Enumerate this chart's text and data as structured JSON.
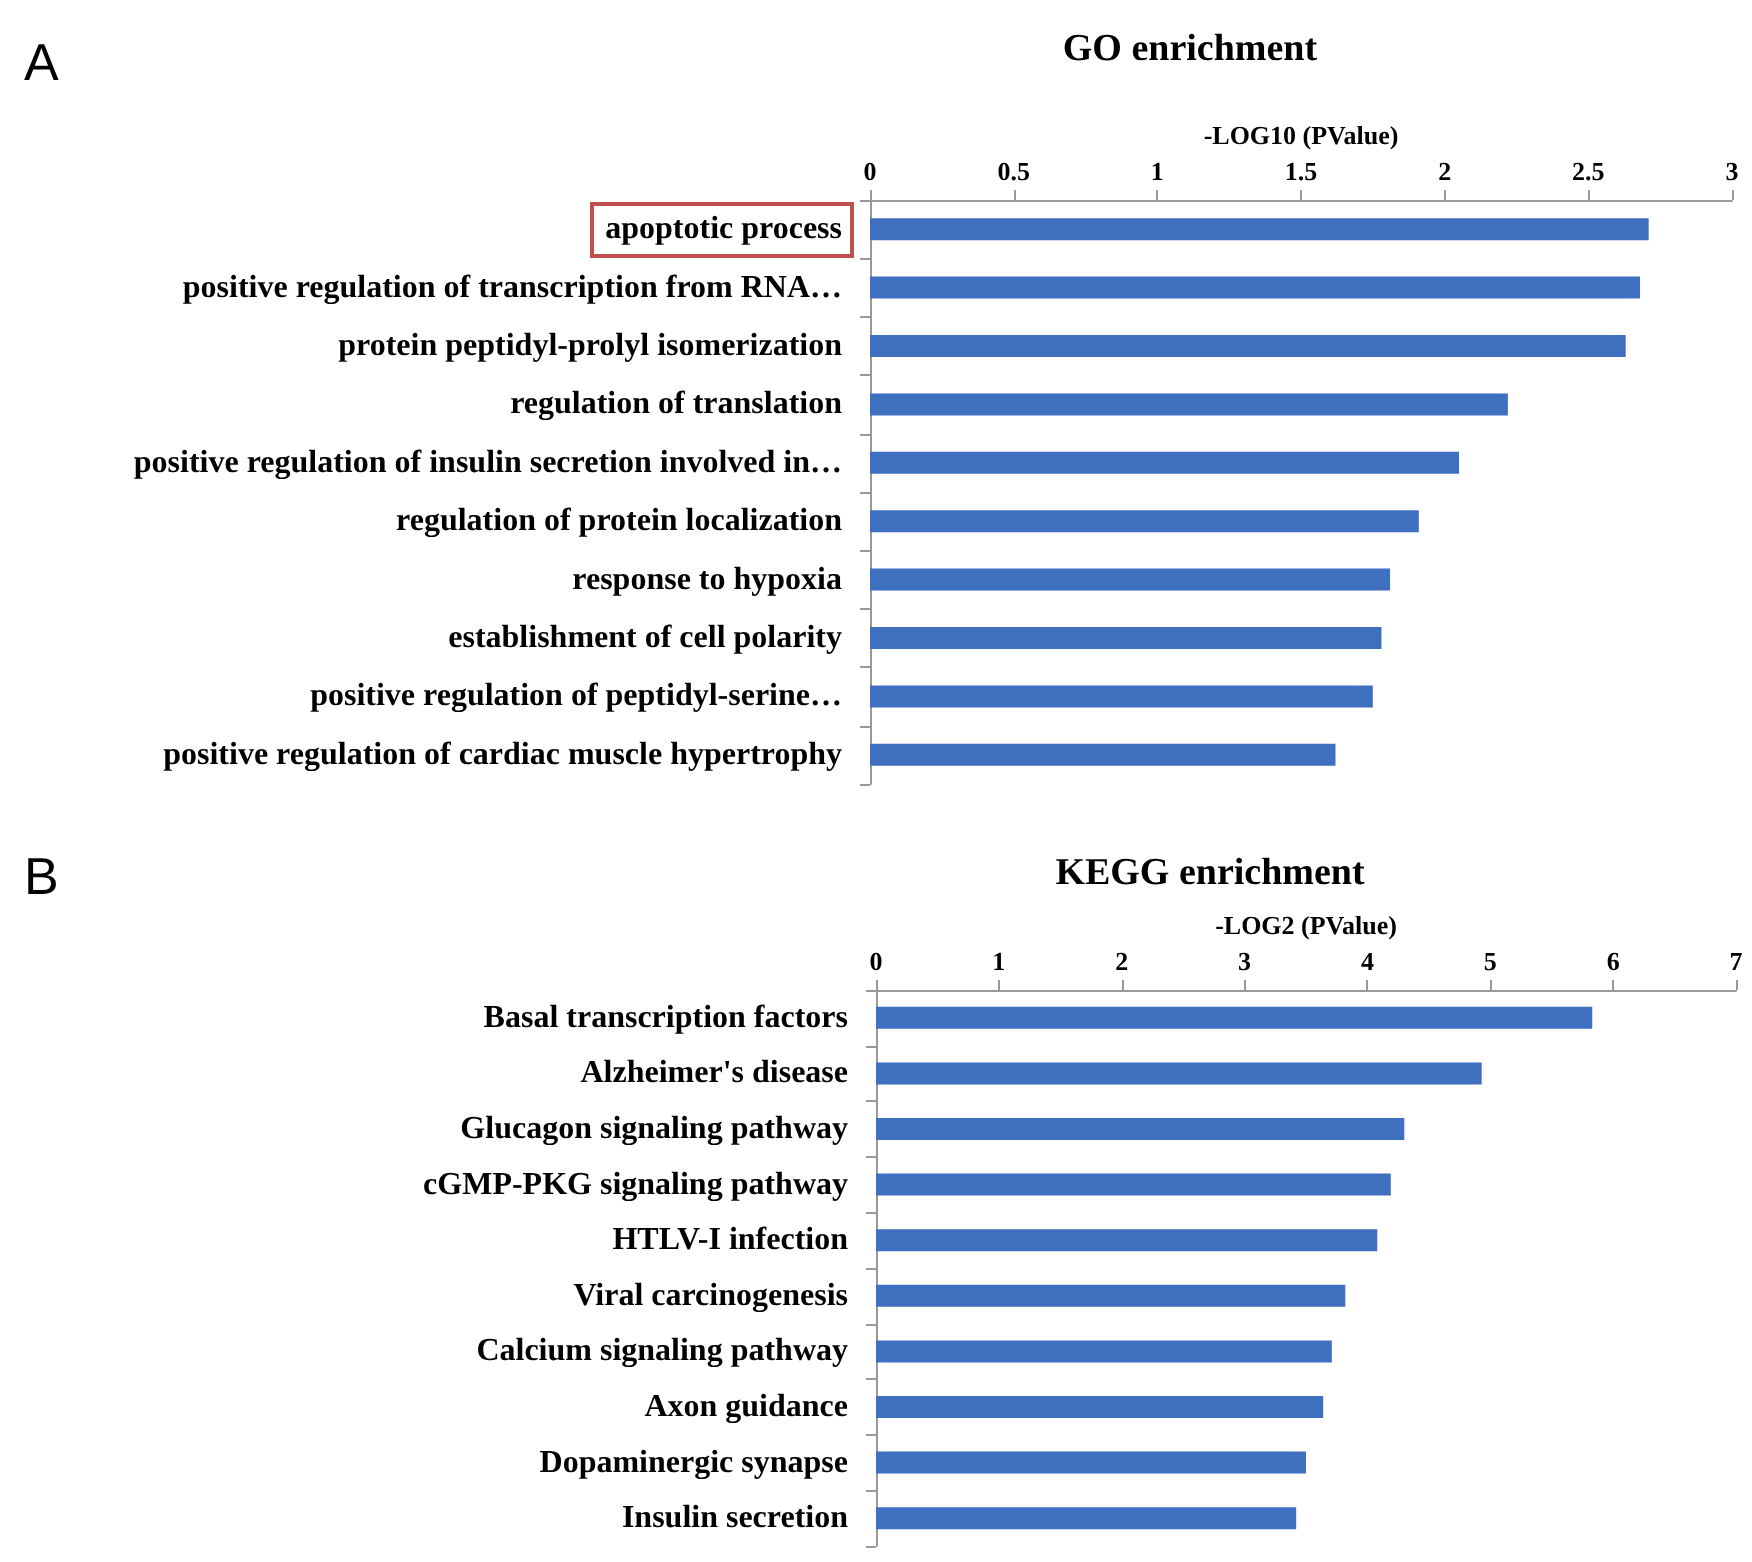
{
  "chart_data": [
    {
      "type": "bar",
      "orientation": "horizontal",
      "title": "GO enrichment",
      "xlabel": "-LOG10 (PValue)",
      "annotations": [
        "A"
      ],
      "categories": [
        "apoptotic process",
        "positive regulation of transcription from RNA…",
        "protein peptidyl-prolyl isomerization",
        "regulation of translation",
        "positive regulation of insulin secretion involved in…",
        "regulation of protein localization",
        "response to hypoxia",
        "establishment of cell polarity",
        "positive regulation of peptidyl-serine…",
        "positive regulation of cardiac muscle hypertrophy"
      ],
      "values": [
        2.71,
        2.68,
        2.63,
        2.22,
        2.05,
        1.91,
        1.81,
        1.78,
        1.75,
        1.62
      ],
      "color": "#3f6fbf",
      "xlim": [
        0,
        3
      ],
      "xticks": [
        0,
        0.5,
        1,
        1.5,
        2,
        2.5,
        3
      ]
    },
    {
      "type": "bar",
      "orientation": "horizontal",
      "title": "KEGG enrichment",
      "xlabel": "-LOG2 (PValue)",
      "annotations": [
        "B"
      ],
      "categories": [
        "Basal transcription factors",
        "Alzheimer's disease",
        "Glucagon signaling pathway",
        "cGMP-PKG signaling pathway",
        "HTLV-I infection",
        "Viral carcinogenesis",
        "Calcium signaling pathway",
        "Axon guidance",
        "Dopaminergic synapse",
        "Insulin secretion"
      ],
      "values": [
        5.83,
        4.93,
        4.3,
        4.19,
        4.08,
        3.82,
        3.71,
        3.64,
        3.5,
        3.42
      ],
      "color": "#3f6fbf",
      "xlim": [
        0,
        7
      ],
      "xticks": [
        0,
        1,
        2,
        3,
        4,
        5,
        6,
        7
      ]
    }
  ]
}
